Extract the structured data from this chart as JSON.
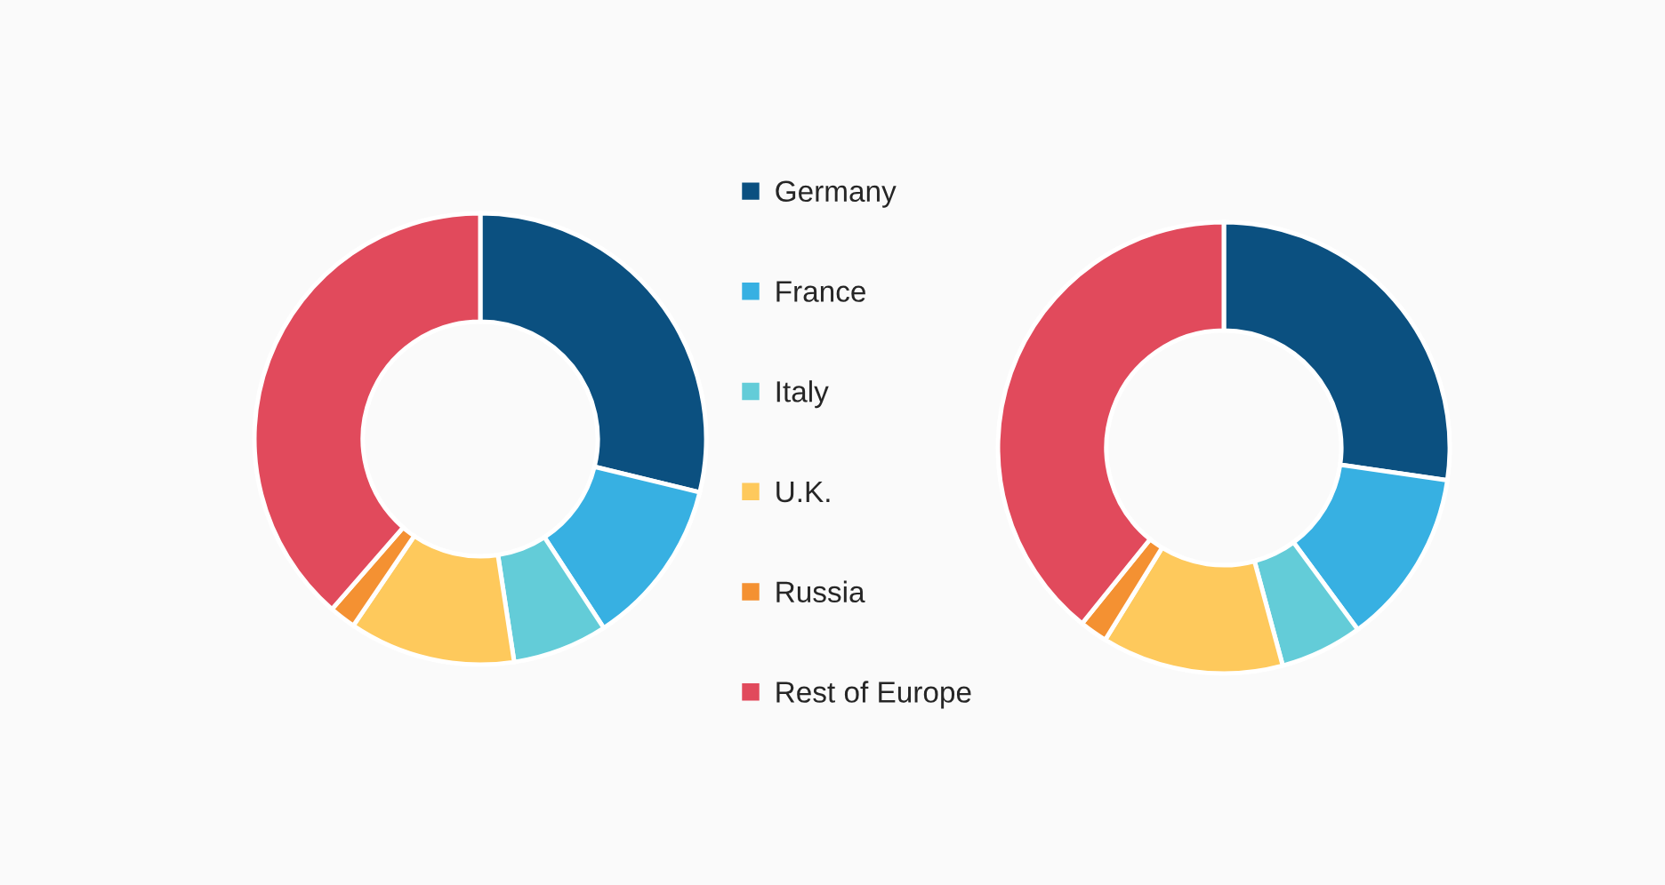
{
  "chart_data": [
    {
      "type": "donut",
      "categories": [
        "Germany",
        "France",
        "Italy",
        "U.K.",
        "Russia",
        "Rest of Europe"
      ],
      "values": [
        28.8,
        12.0,
        6.8,
        11.9,
        1.9,
        38.6
      ],
      "colors": [
        "#0b5080",
        "#37b0e2",
        "#63ccd8",
        "#fec95c",
        "#f49132",
        "#e14a5c"
      ],
      "legend": "right"
    },
    {
      "type": "donut",
      "values": [
        27.3,
        12.6,
        5.9,
        13.0,
        2.0,
        39.2
      ],
      "colors": [
        "#0b5080",
        "#37b0e2",
        "#63ccd8",
        "#fec95c",
        "#f49132",
        "#e14a5c"
      ]
    }
  ]
}
